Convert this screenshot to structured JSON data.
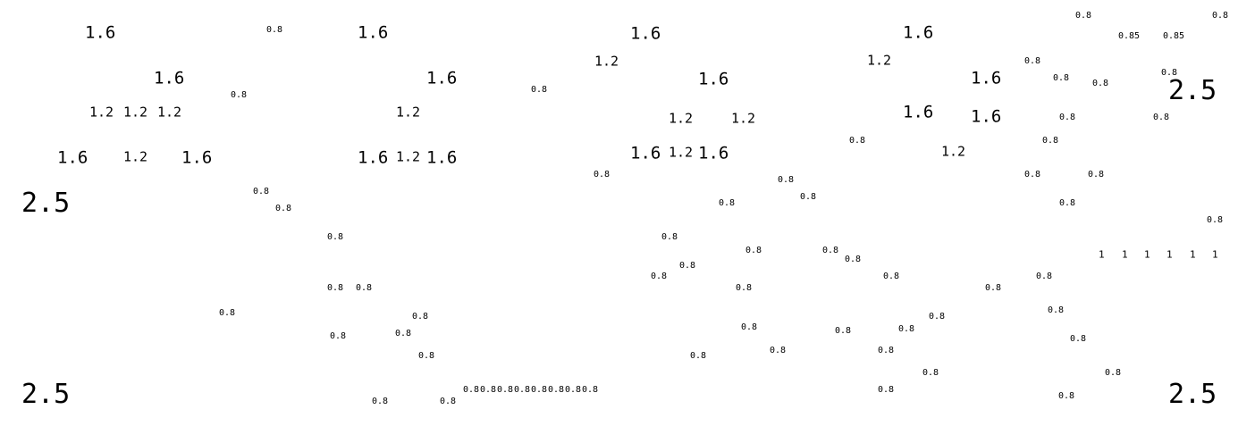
{
  "labels": [
    "1.6",
    "0.8",
    "1.6",
    "1.6",
    "1.6",
    "0.8",
    "0.8",
    "0.85",
    "0.85",
    "1.2",
    "1.2",
    "0.8",
    "1.6",
    "1.6",
    "1.6",
    "1.6",
    "0.8",
    "0.8",
    "0.8",
    "2.5",
    "0.8",
    "0.8",
    "1.2",
    "1.2",
    "1.2",
    "1.2",
    "1.2",
    "1.2",
    "1.6",
    "1.6",
    "0.8",
    "0.8",
    "0.8",
    "0.8",
    "1.2",
    "1.6",
    "1.2",
    "1.6",
    "1.6",
    "1.2",
    "1.6",
    "1.6",
    "1.2",
    "1.6",
    "0.8",
    "0.8",
    "0.8",
    "0.8",
    "2.5",
    "0.8",
    "0.8",
    "0.8",
    "0.8",
    "0.8",
    "0.8",
    "0.8",
    "0.8",
    "0.8",
    "0.8",
    "0.8",
    "1",
    "1",
    "1",
    "1",
    "1",
    "1",
    "0.8",
    "0.8",
    "0.8",
    "0.8",
    "0.8",
    "0.8",
    "0.8",
    "0.8",
    "0.8",
    "0.8",
    "0.8",
    "0.8",
    "0.8",
    "0.8",
    "0.8",
    "0.8",
    "0.8",
    "0.8",
    "0.8",
    "0.8",
    "0.8",
    "0.8",
    "0.8",
    "0.8",
    "2.5",
    "2.5",
    "0.8",
    "0.8",
    "0.8",
    "0.8",
    "0.8",
    "0.8",
    "0.8",
    "0.8",
    "0.8",
    "0.8",
    "0.8",
    "0.8"
  ]
}
